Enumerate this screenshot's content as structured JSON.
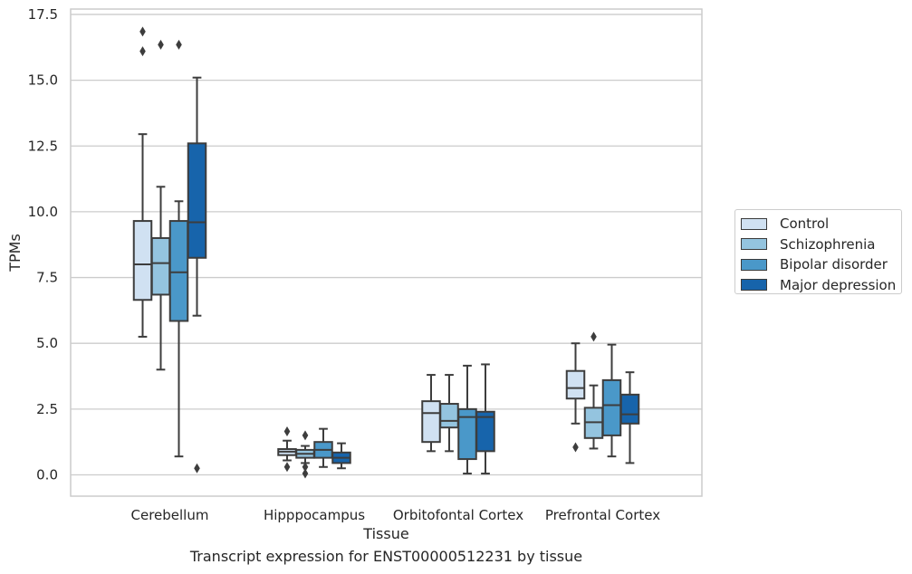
{
  "caption": "Transcript expression for ENST00000512231 by tissue",
  "chart_data": {
    "type": "boxplot",
    "xlabel": "Tissue",
    "ylabel": "TPMs",
    "ylim": [
      -0.8,
      17.7
    ],
    "yticks": [
      "0.0",
      "2.5",
      "5.0",
      "7.5",
      "10.0",
      "12.5",
      "15.0",
      "17.5"
    ],
    "ytick_values": [
      0,
      2.5,
      5,
      7.5,
      10,
      12.5,
      15,
      17.5
    ],
    "grid": "horizontal",
    "legend_position": "right",
    "categories": [
      "Cerebellum",
      "Hipppocampus",
      "Orbitofontal Cortex",
      "Prefrontal Cortex"
    ],
    "series": [
      {
        "name": "Control",
        "color": "#d0e1f2",
        "boxes": [
          {
            "whislo": 5.25,
            "q1": 6.65,
            "med": 8.0,
            "q3": 9.65,
            "whishi": 12.95,
            "fliers": [
              16.1,
              16.85
            ]
          },
          {
            "whislo": 0.55,
            "q1": 0.75,
            "med": 0.88,
            "q3": 0.98,
            "whishi": 1.3,
            "fliers": [
              0.3,
              1.65
            ]
          },
          {
            "whislo": 0.9,
            "q1": 1.25,
            "med": 2.35,
            "q3": 2.8,
            "whishi": 3.8,
            "fliers": []
          },
          {
            "whislo": 1.95,
            "q1": 2.9,
            "med": 3.3,
            "q3": 3.95,
            "whishi": 5.0,
            "fliers": [
              1.05
            ]
          }
        ]
      },
      {
        "name": "Schizophrenia",
        "color": "#94c4df",
        "boxes": [
          {
            "whislo": 4.0,
            "q1": 6.85,
            "med": 8.05,
            "q3": 9.0,
            "whishi": 10.95,
            "fliers": [
              16.35
            ]
          },
          {
            "whislo": 0.45,
            "q1": 0.65,
            "med": 0.8,
            "q3": 0.95,
            "whishi": 1.1,
            "fliers": [
              0.05,
              0.3,
              1.5
            ]
          },
          {
            "whislo": 0.9,
            "q1": 1.8,
            "med": 2.05,
            "q3": 2.7,
            "whishi": 3.8,
            "fliers": []
          },
          {
            "whislo": 1.0,
            "q1": 1.4,
            "med": 2.0,
            "q3": 2.55,
            "whishi": 3.4,
            "fliers": [
              5.25
            ]
          }
        ]
      },
      {
        "name": "Bipolar disorder",
        "color": "#4a98c9",
        "boxes": [
          {
            "whislo": 0.7,
            "q1": 5.85,
            "med": 7.7,
            "q3": 9.65,
            "whishi": 10.4,
            "fliers": [
              16.35
            ]
          },
          {
            "whislo": 0.3,
            "q1": 0.65,
            "med": 0.95,
            "q3": 1.25,
            "whishi": 1.75,
            "fliers": []
          },
          {
            "whislo": 0.05,
            "q1": 0.6,
            "med": 2.2,
            "q3": 2.5,
            "whishi": 4.15,
            "fliers": []
          },
          {
            "whislo": 0.7,
            "q1": 1.5,
            "med": 2.65,
            "q3": 3.6,
            "whishi": 4.95,
            "fliers": []
          }
        ]
      },
      {
        "name": "Major depression",
        "color": "#1764ab",
        "boxes": [
          {
            "whislo": 6.05,
            "q1": 8.25,
            "med": 9.6,
            "q3": 12.6,
            "whishi": 15.1,
            "fliers": [
              0.25
            ]
          },
          {
            "whislo": 0.25,
            "q1": 0.45,
            "med": 0.65,
            "q3": 0.85,
            "whishi": 1.2,
            "fliers": []
          },
          {
            "whislo": 0.05,
            "q1": 0.9,
            "med": 2.2,
            "q3": 2.4,
            "whishi": 4.2,
            "fliers": []
          },
          {
            "whislo": 0.45,
            "q1": 1.95,
            "med": 2.3,
            "q3": 3.05,
            "whishi": 3.9,
            "fliers": []
          }
        ]
      }
    ]
  }
}
